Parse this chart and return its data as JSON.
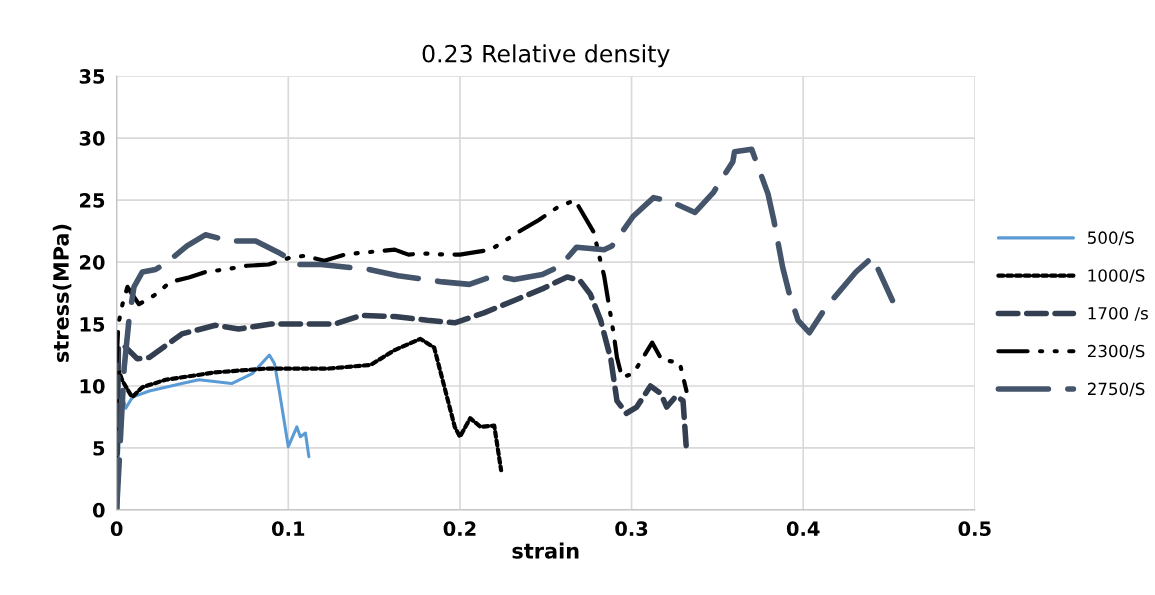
{
  "chart_data": {
    "type": "line",
    "title": "0.23 Relative density",
    "xlabel": "strain",
    "ylabel": "stress(MPa)",
    "xlim": [
      0,
      0.5
    ],
    "xticks": [
      0,
      0.1,
      0.2,
      0.3,
      0.4,
      0.5
    ],
    "ylim": [
      0,
      35
    ],
    "yticks": [
      0,
      5,
      10,
      15,
      20,
      25,
      30,
      35
    ],
    "grid": true,
    "legend": "right",
    "marker": "none",
    "series": [
      {
        "name": "500/S",
        "color": "#5b9bd5",
        "line_style": "solid",
        "x": [
          0,
          0.0024,
          0.0053,
          0.0092,
          0.019,
          0.038,
          0.048,
          0.067,
          0.079,
          0.089,
          0.092,
          0.095,
          0.1,
          0.105,
          0.107,
          0.11,
          0.112
        ],
        "values": [
          0,
          9.6,
          8.2,
          9.1,
          9.6,
          10.2,
          10.5,
          10.2,
          11.0,
          12.5,
          11.8,
          9.4,
          5.1,
          6.7,
          5.9,
          6.2,
          4.3
        ]
      },
      {
        "name": "1000/S",
        "color": "#000000",
        "line_style": "dotted",
        "x": [
          0,
          0.0005,
          0.0034,
          0.009,
          0.015,
          0.0285,
          0.0575,
          0.0865,
          0.123,
          0.148,
          0.162,
          0.177,
          0.185,
          0.191,
          0.197,
          0.2,
          0.206,
          0.212,
          0.22,
          0.224
        ],
        "values": [
          3,
          11.5,
          10.4,
          9.1,
          9.9,
          10.5,
          11.1,
          11.4,
          11.4,
          11.7,
          12.9,
          13.8,
          13.1,
          9.9,
          6.7,
          5.9,
          7.4,
          6.7,
          6.8,
          3.2
        ]
      },
      {
        "name": "1700 /s",
        "color": "#333f50",
        "line_style": "dashed",
        "x": [
          0,
          0.001,
          0.004,
          0.012,
          0.019,
          0.038,
          0.0575,
          0.071,
          0.09,
          0.127,
          0.1426,
          0.162,
          0.181,
          0.197,
          0.214,
          0.2316,
          0.249,
          0.2625,
          0.27,
          0.276,
          0.282,
          0.288,
          0.2915,
          0.297,
          0.303,
          0.311,
          0.317,
          0.3205,
          0.326,
          0.33,
          0.332
        ],
        "values": [
          0,
          13,
          13.3,
          12.2,
          12.3,
          14.2,
          14.9,
          14.6,
          15.0,
          15.0,
          15.7,
          15.6,
          15.3,
          15.1,
          15.9,
          16.9,
          17.9,
          18.8,
          18.5,
          17.4,
          15.3,
          12.1,
          8.8,
          7.8,
          8.3,
          10.0,
          9.4,
          8.3,
          9.2,
          8.8,
          4.8
        ]
      },
      {
        "name": "2300/S",
        "color": "#000000",
        "line_style": "dashdot",
        "x": [
          0,
          0.001,
          0.0034,
          0.0063,
          0.009,
          0.013,
          0.0218,
          0.0314,
          0.042,
          0.0517,
          0.063,
          0.0759,
          0.0885,
          0.102,
          0.1097,
          0.121,
          0.133,
          0.139,
          0.162,
          0.17,
          0.178,
          0.192,
          0.2,
          0.218,
          0.235,
          0.246,
          0.2567,
          0.267,
          0.278,
          0.281,
          0.284,
          0.2896,
          0.2915,
          0.2944,
          0.301,
          0.312,
          0.3176,
          0.328,
          0.332
        ],
        "values": [
          12,
          15,
          16.6,
          18.0,
          17.4,
          16.6,
          17.3,
          18.4,
          18.75,
          19.2,
          19.4,
          19.7,
          19.8,
          20.4,
          20.5,
          20.1,
          20.6,
          20.7,
          21.0,
          20.6,
          20.7,
          20.6,
          20.6,
          21.0,
          22.5,
          23.4,
          24.4,
          25.0,
          22.4,
          20.6,
          18.9,
          14.2,
          12.3,
          10.7,
          11.0,
          13.5,
          12.1,
          11.9,
          9.6
        ]
      },
      {
        "name": "2750/S",
        "color": "#44546a",
        "line_style": "longdash",
        "x": [
          0,
          0.0044,
          0.0073,
          0.0101,
          0.015,
          0.0227,
          0.0295,
          0.041,
          0.0517,
          0.066,
          0.081,
          0.094,
          0.106,
          0.119,
          0.147,
          0.164,
          0.19,
          0.2055,
          0.22,
          0.2316,
          0.248,
          0.2586,
          0.268,
          0.284,
          0.2886,
          0.301,
          0.3128,
          0.3224,
          0.337,
          0.3476,
          0.359,
          0.36,
          0.37,
          0.3795,
          0.383,
          0.388,
          0.392,
          0.397,
          0.4036,
          0.413,
          0.4307,
          0.4404,
          0.452
        ],
        "values": [
          0,
          11.5,
          15.5,
          18.0,
          19.2,
          19.4,
          20.0,
          21.3,
          22.2,
          21.7,
          21.7,
          20.8,
          19.8,
          19.8,
          19.4,
          18.9,
          18.4,
          18.2,
          18.9,
          18.6,
          19.0,
          19.7,
          21.2,
          21.0,
          21.3,
          23.7,
          25.2,
          24.9,
          24.0,
          25.6,
          28.1,
          28.9,
          29.1,
          25.5,
          23.3,
          19.6,
          17.4,
          15.3,
          14.3,
          16.3,
          19.2,
          20.4,
          16.9
        ]
      }
    ]
  }
}
